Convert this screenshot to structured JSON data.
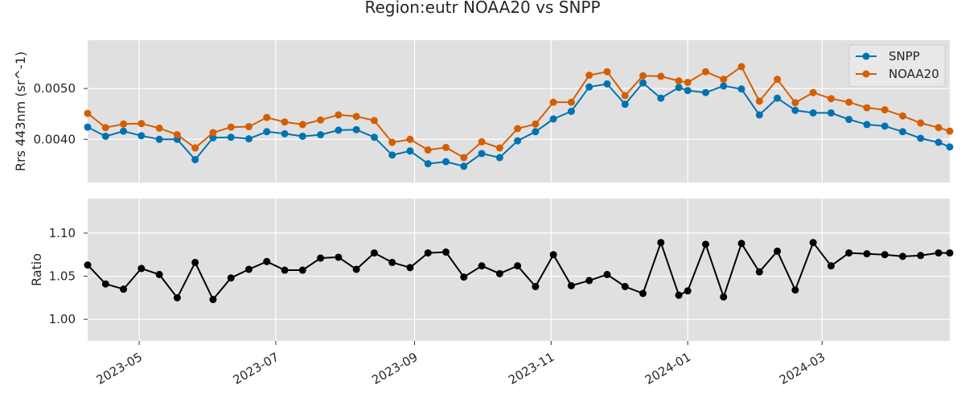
{
  "chart_data": {
    "type": "line",
    "title": "Region:eutr NOAA20 vs SNPP",
    "x_tick_labels": [
      "2023-05",
      "2023-07",
      "2023-09",
      "2023-11",
      "2024-01",
      "2024-03"
    ],
    "x_tick_dates": [
      "2023-05-01",
      "2023-07-01",
      "2023-09-01",
      "2023-11-01",
      "2024-01-01",
      "2024-03-01"
    ],
    "xlim": [
      "2023-04-08",
      "2024-04-27"
    ],
    "x": [
      "2023-04-08",
      "2023-04-16",
      "2023-04-24",
      "2023-05-02",
      "2023-05-10",
      "2023-05-18",
      "2023-05-26",
      "2023-06-03",
      "2023-06-11",
      "2023-06-19",
      "2023-06-27",
      "2023-07-05",
      "2023-07-13",
      "2023-07-21",
      "2023-07-29",
      "2023-08-06",
      "2023-08-14",
      "2023-08-22",
      "2023-08-30",
      "2023-09-07",
      "2023-09-15",
      "2023-09-23",
      "2023-10-01",
      "2023-10-09",
      "2023-10-17",
      "2023-10-25",
      "2023-11-02",
      "2023-11-10",
      "2023-11-18",
      "2023-11-26",
      "2023-12-04",
      "2023-12-12",
      "2023-12-20",
      "2023-12-28",
      "2024-01-01",
      "2024-01-09",
      "2024-01-17",
      "2024-01-25",
      "2024-02-02",
      "2024-02-10",
      "2024-02-18",
      "2024-02-26",
      "2024-03-05",
      "2024-03-13",
      "2024-03-21",
      "2024-03-29",
      "2024-04-06",
      "2024-04-14",
      "2024-04-22",
      "2024-04-27"
    ],
    "panels": [
      {
        "ylabel": "Rrs 443nm (sr^-1)",
        "ylim": [
          0.00315,
          0.00595
        ],
        "yticks": [
          0.004,
          0.005
        ],
        "ytick_labels": [
          "0.0040",
          "0.0050"
        ],
        "legend": "top-right",
        "series": [
          {
            "name": "SNPP",
            "color": "#0072b2",
            "values": [
              0.00424,
              0.00406,
              0.00416,
              0.00407,
              0.004,
              0.004,
              0.0036,
              0.00403,
              0.00404,
              0.00401,
              0.00415,
              0.00411,
              0.00406,
              0.00409,
              0.00418,
              0.00419,
              0.00404,
              0.00369,
              0.00377,
              0.00352,
              0.00356,
              0.00347,
              0.00372,
              0.00364,
              0.00397,
              0.00415,
              0.0044,
              0.00455,
              0.00503,
              0.00509,
              0.00469,
              0.00511,
              0.00481,
              0.00502,
              0.00496,
              0.00492,
              0.00505,
              0.00499,
              0.00448,
              0.00481,
              0.00457,
              0.00452,
              0.00452,
              0.00439,
              0.00429,
              0.00426,
              0.00415,
              0.00402,
              0.00394,
              0.00385
            ]
          },
          {
            "name": "NOAA20",
            "color": "#d55e00",
            "values": [
              0.00451,
              0.00423,
              0.0043,
              0.00431,
              0.00422,
              0.00409,
              0.00383,
              0.00413,
              0.00424,
              0.00425,
              0.00443,
              0.00434,
              0.00429,
              0.00438,
              0.00448,
              0.00445,
              0.00437,
              0.00394,
              0.004,
              0.00379,
              0.00384,
              0.00364,
              0.00395,
              0.00383,
              0.00421,
              0.0043,
              0.00473,
              0.00473,
              0.00526,
              0.00533,
              0.00486,
              0.00525,
              0.00524,
              0.00515,
              0.00512,
              0.00533,
              0.00518,
              0.00543,
              0.00475,
              0.00518,
              0.00472,
              0.00492,
              0.0048,
              0.00473,
              0.00462,
              0.00458,
              0.00446,
              0.00432,
              0.00423,
              0.00416
            ]
          }
        ]
      },
      {
        "ylabel": "Ratio",
        "ylim": [
          0.975,
          1.14
        ],
        "yticks": [
          1.0,
          1.05,
          1.1
        ],
        "ytick_labels": [
          "1.00",
          "1.05",
          "1.10"
        ],
        "series": [
          {
            "name": "",
            "color": "#000000",
            "values": [
              1.063,
              1.041,
              1.035,
              1.059,
              1.052,
              1.025,
              1.066,
              1.023,
              1.048,
              1.058,
              1.067,
              1.057,
              1.057,
              1.071,
              1.072,
              1.058,
              1.077,
              1.066,
              1.06,
              1.077,
              1.078,
              1.049,
              1.062,
              1.053,
              1.062,
              1.038,
              1.075,
              1.039,
              1.045,
              1.052,
              1.038,
              1.03,
              1.089,
              1.028,
              1.033,
              1.087,
              1.026,
              1.088,
              1.055,
              1.079,
              1.034,
              1.089,
              1.062,
              1.077,
              1.076,
              1.075,
              1.073,
              1.074,
              1.077,
              1.077
            ]
          }
        ]
      }
    ]
  }
}
